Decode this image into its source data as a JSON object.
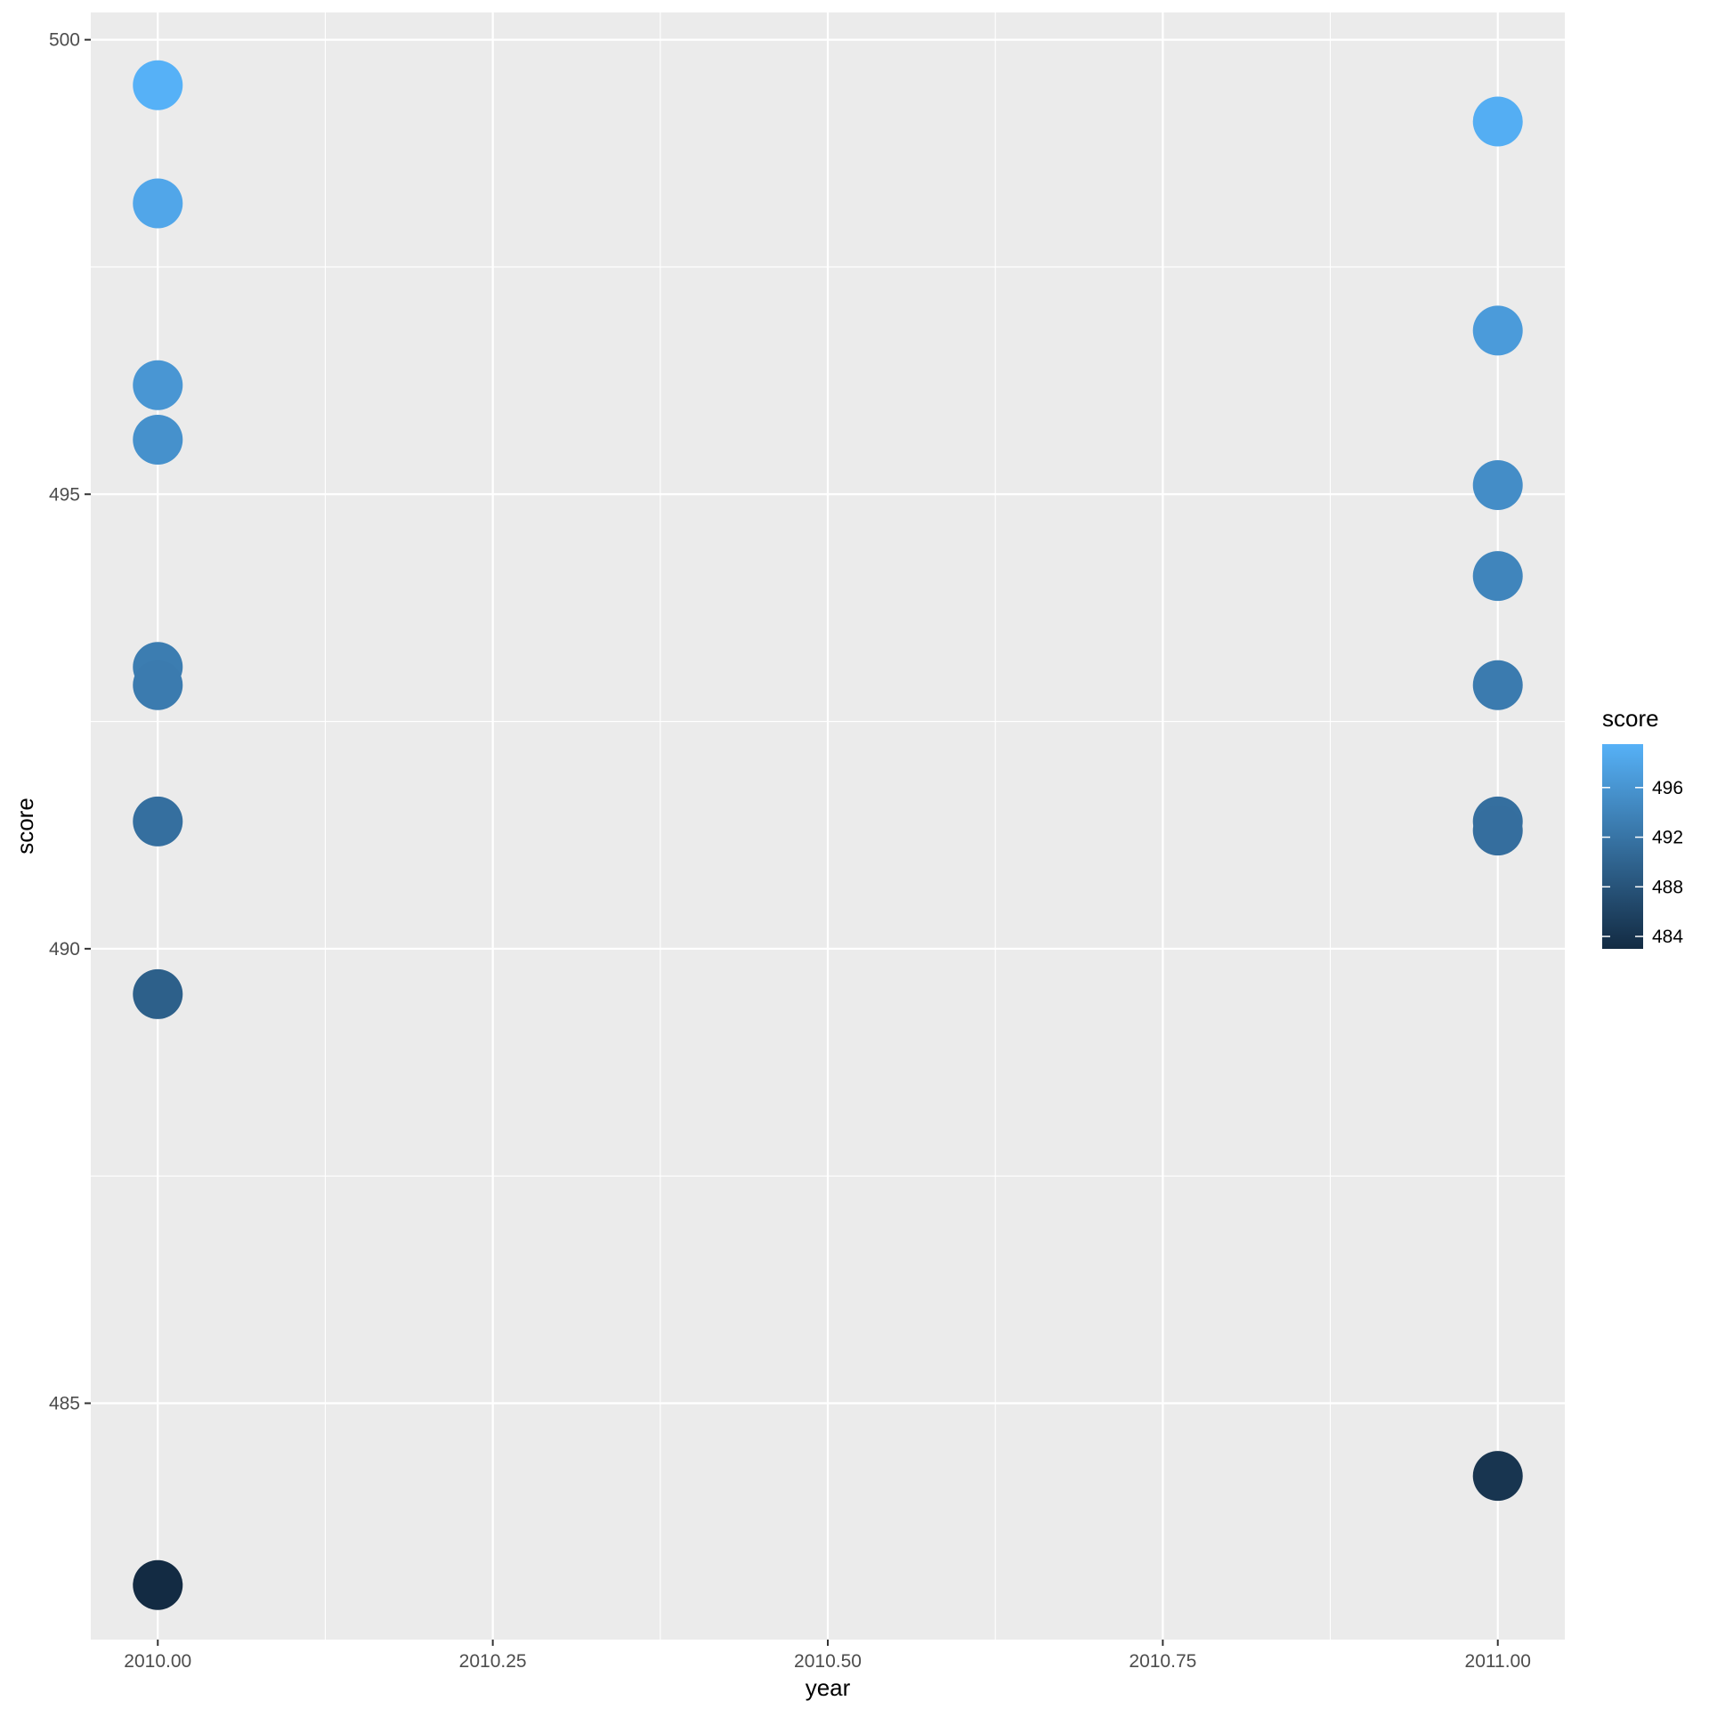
{
  "chart_data": {
    "type": "scatter",
    "title": "",
    "xlabel": "year",
    "ylabel": "score",
    "xlim": [
      2009.95,
      2011.05
    ],
    "ylim": [
      482.4,
      500.3
    ],
    "x_ticks": [
      2010.0,
      2010.25,
      2010.5,
      2010.75,
      2011.0
    ],
    "x_tick_labels": [
      "2010.00",
      "2010.25",
      "2010.50",
      "2010.75",
      "2011.00"
    ],
    "y_ticks": [
      485,
      490,
      495,
      500
    ],
    "y_tick_labels": [
      "485",
      "490",
      "495",
      "500"
    ],
    "grid": true,
    "legend": {
      "title": "score",
      "placement": "right",
      "type": "colorbar",
      "range": [
        483.0,
        499.5
      ],
      "ticks": [
        484,
        488,
        492,
        496
      ],
      "tick_labels": [
        "484",
        "488",
        "492",
        "496"
      ],
      "color_low": "#132B43",
      "color_high": "#56B1F7"
    },
    "colors": {
      "panel_background": "#EBEBEB",
      "grid": "#FFFFFF"
    },
    "points": [
      {
        "x": 2010.0,
        "y": 499.5
      },
      {
        "x": 2010.0,
        "y": 498.2
      },
      {
        "x": 2010.0,
        "y": 496.2
      },
      {
        "x": 2010.0,
        "y": 495.6
      },
      {
        "x": 2010.0,
        "y": 493.1
      },
      {
        "x": 2010.0,
        "y": 492.9
      },
      {
        "x": 2010.0,
        "y": 491.4
      },
      {
        "x": 2010.0,
        "y": 489.5
      },
      {
        "x": 2010.0,
        "y": 483.0
      },
      {
        "x": 2011.0,
        "y": 499.1
      },
      {
        "x": 2011.0,
        "y": 496.8
      },
      {
        "x": 2011.0,
        "y": 495.1
      },
      {
        "x": 2011.0,
        "y": 494.1
      },
      {
        "x": 2011.0,
        "y": 492.9
      },
      {
        "x": 2011.0,
        "y": 491.4
      },
      {
        "x": 2011.0,
        "y": 491.3
      },
      {
        "x": 2011.0,
        "y": 484.2
      }
    ]
  }
}
